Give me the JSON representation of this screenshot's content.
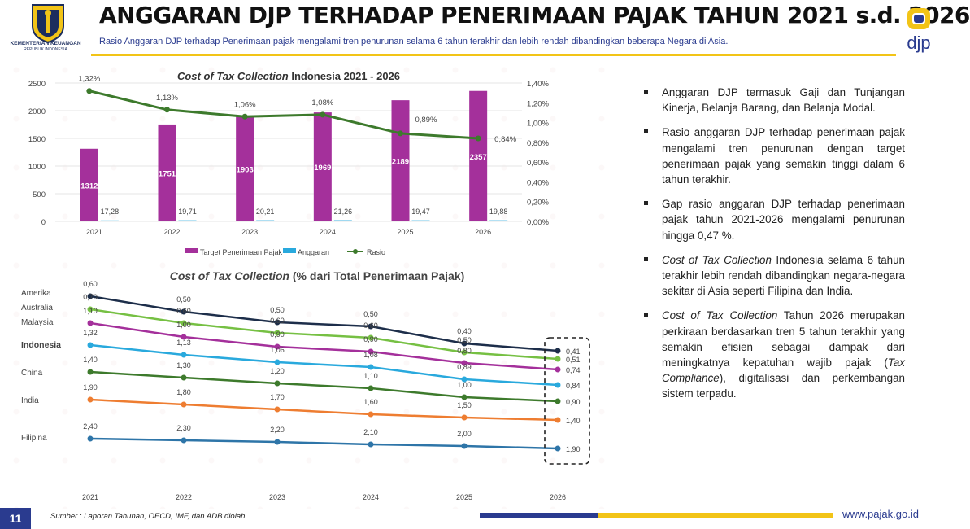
{
  "header": {
    "ministry": "KEMENTERIAN KEUANGAN",
    "ministry_sub": "REPUBLIK INDONESIA",
    "title": "ANGGARAN DJP TERHADAP PENERIMAAN PAJAK TAHUN 2021 s.d. 2026",
    "subtitle": "Rasio Anggaran DJP terhadap Penerimaan pajak mengalami tren penurunan selama 6 tahun terakhir dan lebih rendah dibandingkan beberapa Negara di Asia.",
    "brand": "djp"
  },
  "colors": {
    "navy": "#2a3b8f",
    "purple": "#a4309b",
    "cyan": "#29a9dd",
    "green": "#3d7a2c",
    "yellow": "#f2c417"
  },
  "chart_data": [
    {
      "type": "bar",
      "title": "Cost of Tax Collection Indonesia 2021 - 2026",
      "title_italic_part": "Cost of Tax Collection",
      "title_rest": " Indonesia 2021 - 2026",
      "categories": [
        "2021",
        "2022",
        "2023",
        "2024",
        "2025",
        "2026"
      ],
      "y_ticks": [
        "2500",
        "2000",
        "1500",
        "1000",
        "500",
        "0"
      ],
      "y2_ticks": [
        "1,40%",
        "1,20%",
        "1,00%",
        "0,80%",
        "0,60%",
        "0,40%",
        "0,20%",
        "0,00%"
      ],
      "ylim": [
        0,
        2500
      ],
      "y2lim": [
        0,
        1.4
      ],
      "legend_position": "bottom",
      "series": [
        {
          "name": "Target Penerimaan Pajak",
          "type": "bar",
          "color": "#a4309b",
          "values": [
            1312,
            1751,
            1903,
            1969,
            2189,
            2357
          ],
          "labels": [
            "1312",
            "1751",
            "1903",
            "1969",
            "2189",
            "2357"
          ]
        },
        {
          "name": "Anggaran",
          "type": "bar",
          "color": "#29a9dd",
          "values": [
            17.28,
            19.71,
            20.21,
            21.26,
            19.47,
            19.88
          ],
          "labels": [
            "17,28",
            "19,71",
            "20,21",
            "21,26",
            "19,47",
            "19,88"
          ]
        },
        {
          "name": "Rasio",
          "type": "line",
          "axis": "right",
          "color": "#3d7a2c",
          "values": [
            1.32,
            1.13,
            1.06,
            1.08,
            0.89,
            0.84
          ],
          "labels": [
            "1,32%",
            "1,13%",
            "1,06%",
            "1,08%",
            "0,89%",
            "0,84%"
          ]
        }
      ]
    },
    {
      "type": "line",
      "title": "Cost of Tax Collection (% dari Total Penerimaan Pajak)",
      "title_italic_part": "Cost of Tax Collection",
      "title_rest": " (% dari Total Penerimaan Pajak)",
      "categories": [
        "2021",
        "2022",
        "2023",
        "2024",
        "2025",
        "2026"
      ],
      "series": [
        {
          "name": "Amerika",
          "color": "#1d2e4a",
          "values": [
            0.6,
            0.5,
            0.5,
            0.5,
            0.4,
            0.41
          ],
          "labels": [
            "0,60",
            "0,50",
            "0,50",
            "0,50",
            "0,40",
            "0,41"
          ]
        },
        {
          "name": "Australia",
          "color": "#76c043",
          "values": [
            0.7,
            0.6,
            0.6,
            0.6,
            0.5,
            0.51
          ],
          "labels": [
            "0,70",
            "0,60",
            "0,60",
            "0,60",
            "0,50",
            "0,51"
          ]
        },
        {
          "name": "Malaysia",
          "color": "#a4309b",
          "values": [
            1.1,
            1.0,
            0.9,
            0.9,
            0.8,
            0.74
          ],
          "labels": [
            "1,10",
            "1,00",
            "0,90",
            "0,90",
            "0,80",
            "0,74"
          ]
        },
        {
          "name": "Indonesia",
          "color": "#29a9dd",
          "values": [
            1.32,
            1.13,
            1.06,
            1.08,
            0.89,
            0.84
          ],
          "labels": [
            "1,32",
            "1,13",
            "1,06",
            "1,08",
            "0,89",
            "0,84"
          ]
        },
        {
          "name": "China",
          "color": "#3d7a2c",
          "values": [
            1.4,
            1.3,
            1.2,
            1.1,
            1.0,
            0.9
          ],
          "labels": [
            "1,40",
            "1,30",
            "1,20",
            "1,10",
            "1,00",
            "0,90"
          ]
        },
        {
          "name": "India",
          "color": "#ee7d31",
          "values": [
            1.9,
            1.8,
            1.7,
            1.6,
            1.5,
            1.4
          ],
          "labels": [
            "1,90",
            "1,80",
            "1,70",
            "1,60",
            "1,50",
            "1,40"
          ]
        },
        {
          "name": "Filipina",
          "color": "#2e75a8",
          "values": [
            2.4,
            2.3,
            2.2,
            2.1,
            2.0,
            1.9
          ],
          "labels": [
            "2,40",
            "2,30",
            "2,20",
            "2,10",
            "2,00",
            "1,90"
          ]
        }
      ]
    }
  ],
  "bullets": [
    {
      "parts": [
        {
          "t": "Anggaran DJP termasuk Gaji dan Tunjangan Kinerja, Belanja Barang, dan Belanja Modal."
        }
      ]
    },
    {
      "parts": [
        {
          "t": "Rasio anggaran DJP terhadap penerimaan pajak mengalami tren penurunan dengan target penerimaan pajak yang semakin tinggi dalam 6 tahun terakhir."
        }
      ]
    },
    {
      "parts": [
        {
          "t": "Gap rasio anggaran DJP terhadap penerimaan pajak tahun 2021-2026 mengalami penurunan hingga 0,47 %."
        }
      ]
    },
    {
      "parts": [
        {
          "t": "Cost of Tax Collection",
          "i": true
        },
        {
          "t": " Indonesia selama 6 tahun terakhir lebih rendah dibandingkan negara-negara sekitar di Asia seperti Filipina dan India."
        }
      ]
    },
    {
      "parts": [
        {
          "t": "Cost of Tax Collection",
          "i": true
        },
        {
          "t": " Tahun 2026 merupakan perkiraan berdasarkan tren 5 tahun terakhir yang semakin efisien sebagai dampak dari meningkatnya kepatuhan wajib pajak ("
        },
        {
          "t": "Tax Compliance",
          "i": true
        },
        {
          "t": "), digitalisasi dan perkembangan sistem terpadu."
        }
      ]
    }
  ],
  "footer": {
    "page": "11",
    "source": "Sumber : Laporan Tahunan, OECD, IMF, dan ADB diolah",
    "website": "www.pajak.go.id",
    "bar_colors": [
      "#2a3b8f",
      "#f2c417"
    ]
  }
}
